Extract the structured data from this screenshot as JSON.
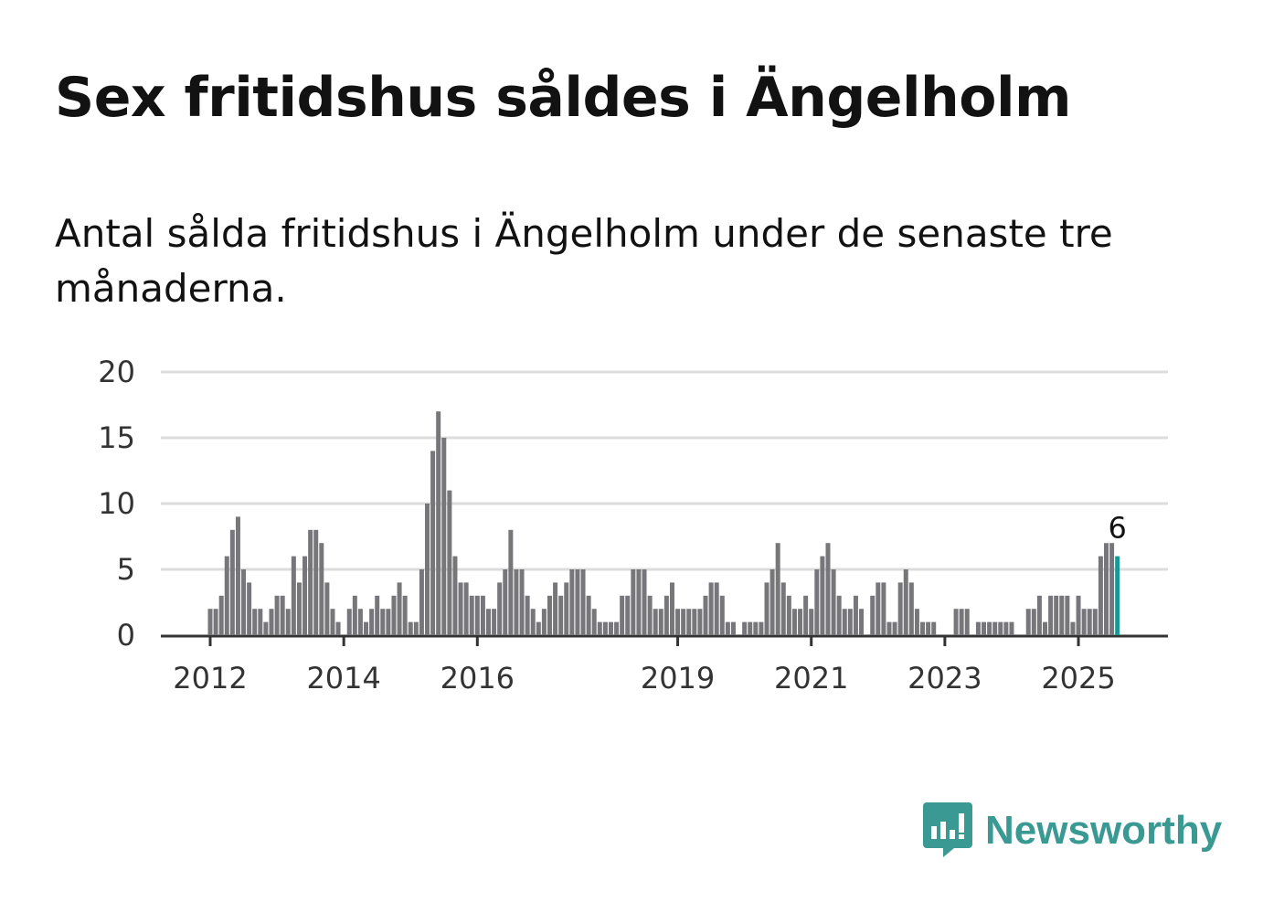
{
  "title": "Sex fritidshus såldes i Ängelholm",
  "subtitle": "Antal sålda fritidshus i Ängelholm under de senaste tre månaderna.",
  "brand": {
    "name": "Newsworthy",
    "icon": "newsworthy-logo-icon",
    "color": "#3a9a93"
  },
  "colors": {
    "bar": "#77767b",
    "highlight": "#1a9894",
    "grid": "#dcdcdc",
    "axis": "#333333"
  },
  "chart_data": {
    "type": "bar",
    "start": "2012-01",
    "values": [
      2,
      2,
      3,
      6,
      8,
      9,
      5,
      4,
      2,
      2,
      1,
      2,
      3,
      3,
      2,
      6,
      4,
      6,
      8,
      8,
      7,
      4,
      2,
      1,
      0,
      2,
      3,
      2,
      1,
      2,
      3,
      2,
      2,
      3,
      4,
      3,
      1,
      1,
      5,
      10,
      14,
      17,
      15,
      11,
      6,
      4,
      4,
      3,
      3,
      3,
      2,
      2,
      4,
      5,
      8,
      5,
      5,
      3,
      2,
      1,
      2,
      3,
      4,
      3,
      4,
      5,
      5,
      5,
      3,
      2,
      1,
      1,
      1,
      1,
      3,
      3,
      5,
      5,
      5,
      3,
      2,
      2,
      3,
      4,
      2,
      2,
      2,
      2,
      2,
      3,
      4,
      4,
      3,
      1,
      1,
      0,
      1,
      1,
      1,
      1,
      4,
      5,
      7,
      4,
      3,
      2,
      2,
      3,
      2,
      5,
      6,
      7,
      5,
      3,
      2,
      2,
      3,
      2,
      0,
      3,
      4,
      4,
      1,
      1,
      4,
      5,
      4,
      2,
      1,
      1,
      1,
      0,
      0,
      0,
      2,
      2,
      2,
      0,
      1,
      1,
      1,
      1,
      1,
      1,
      1,
      0,
      0,
      2,
      2,
      3,
      1,
      3,
      3,
      3,
      3,
      1,
      3,
      2,
      2,
      2,
      6,
      7,
      7,
      6
    ],
    "highlight_label": "6",
    "yticks": [
      0,
      5,
      10,
      15,
      20
    ],
    "ylim": [
      0,
      20
    ],
    "xticks": [
      {
        "label": "2012",
        "index": 0
      },
      {
        "label": "2014",
        "index": 24
      },
      {
        "label": "2016",
        "index": 48
      },
      {
        "label": "2019",
        "index": 84
      },
      {
        "label": "2021",
        "index": 108
      },
      {
        "label": "2023",
        "index": 132
      },
      {
        "label": "2025",
        "index": 156
      }
    ],
    "xlabel": "",
    "ylabel": "",
    "grid": true
  }
}
